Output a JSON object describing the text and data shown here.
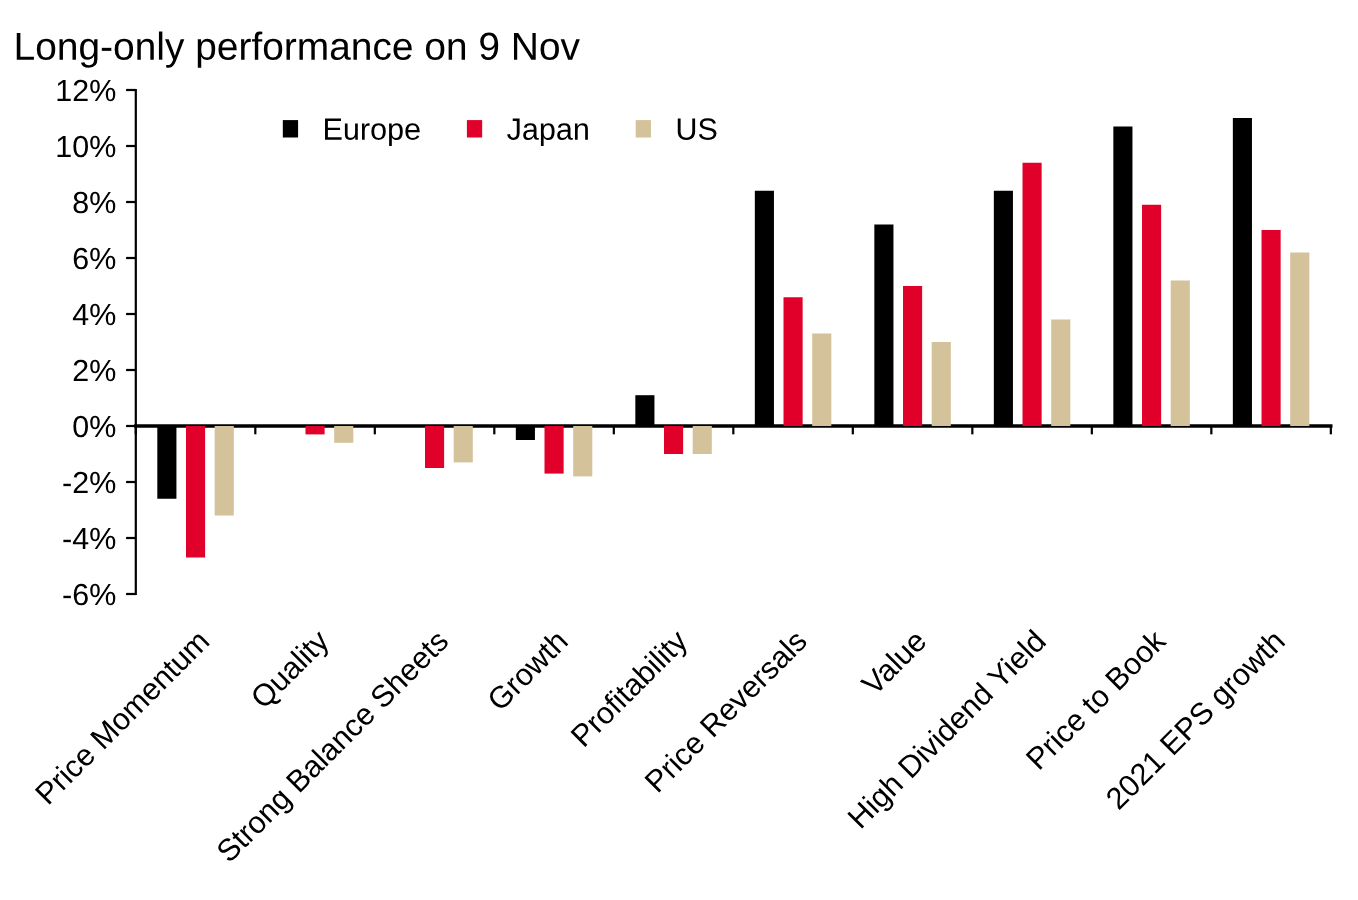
{
  "chart_data": {
    "type": "bar",
    "title": "Long-only performance on 9 Nov",
    "categories": [
      "Price Momentum",
      "Quality",
      "Strong Balance Sheets",
      "Growth",
      "Profitability",
      "Price Reversals",
      "Value",
      "High Dividend Yield",
      "Price to Book",
      "2021 EPS growth"
    ],
    "series": [
      {
        "name": "Europe",
        "color": "#000000",
        "values": [
          -2.6,
          0.0,
          0.0,
          -0.5,
          1.1,
          8.4,
          7.2,
          8.4,
          10.7,
          11.0
        ]
      },
      {
        "name": "Japan",
        "color": "#e0002a",
        "values": [
          -4.7,
          -0.3,
          -1.5,
          -1.7,
          -1.0,
          4.6,
          5.0,
          9.4,
          7.9,
          7.0
        ]
      },
      {
        "name": "US",
        "color": "#d4c29a",
        "values": [
          -3.2,
          -0.6,
          -1.3,
          -1.8,
          -1.0,
          3.3,
          3.0,
          3.8,
          5.2,
          6.2
        ]
      }
    ],
    "ylim": [
      -6,
      12
    ],
    "yticks": [
      {
        "value": -6,
        "label": "-6%"
      },
      {
        "value": -4,
        "label": "-4%"
      },
      {
        "value": -2,
        "label": "-2%"
      },
      {
        "value": 0,
        "label": "0%"
      },
      {
        "value": 2,
        "label": "2%"
      },
      {
        "value": 4,
        "label": "4%"
      },
      {
        "value": 6,
        "label": "6%"
      },
      {
        "value": 8,
        "label": "8%"
      },
      {
        "value": 10,
        "label": "10%"
      },
      {
        "value": 12,
        "label": "12%"
      }
    ],
    "legend": "top left"
  }
}
